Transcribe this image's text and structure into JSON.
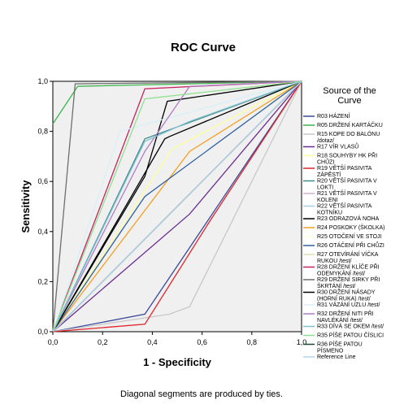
{
  "chart_data": {
    "type": "line",
    "title": "ROC Curve",
    "xlabel": "1 - Specificity",
    "ylabel": "Sensitivity",
    "xlim": [
      0,
      1
    ],
    "ylim": [
      0,
      1
    ],
    "x_ticks": [
      "0,0",
      "0,2",
      "0,4",
      "0,6",
      "0,8",
      "1,0"
    ],
    "y_ticks": [
      "0,0",
      "0,2",
      "0,4",
      "0,6",
      "0,8",
      "1,0"
    ],
    "grid": false,
    "plot_background": "#f0f0f0",
    "legend": {
      "title_lines": [
        "Source of the",
        "Curve"
      ],
      "placement": "right"
    },
    "footnote": "Diagonal segments are produced by ties.",
    "series": [
      {
        "name": [
          "R03 HÁZENÍ"
        ],
        "color": "#3a4a9c",
        "points": [
          [
            0,
            0
          ],
          [
            0.37,
            0.07
          ],
          [
            1,
            1
          ]
        ]
      },
      {
        "name": [
          "R05 DRŽENÍ KARTÁČKU"
        ],
        "color": "#3cb44b",
        "points": [
          [
            0,
            0.83
          ],
          [
            0.1,
            0.98
          ],
          [
            1,
            1
          ]
        ]
      },
      {
        "name": [
          "R15 KOPE DO BALÓNU",
          "/dotaz/"
        ],
        "color": "#c8c8c8",
        "points": [
          [
            0,
            0
          ],
          [
            0.47,
            0.07
          ],
          [
            0.55,
            0.1
          ],
          [
            1,
            1
          ]
        ]
      },
      {
        "name": [
          "R17 VÍR VLASŮ"
        ],
        "color": "#6a2c91",
        "points": [
          [
            0,
            0
          ],
          [
            0.55,
            0.47
          ],
          [
            1,
            1
          ]
        ]
      },
      {
        "name": [
          "R18 SOUHYBY HK PŘI",
          "CHŮZI"
        ],
        "color": "#ffff99",
        "points": [
          [
            0,
            0
          ],
          [
            0.48,
            0.73
          ],
          [
            1,
            1
          ]
        ]
      },
      {
        "name": [
          "R19 VĚTŠÍ PASIVITA",
          "ZÁPĚSTÍ"
        ],
        "color": "#e0242c",
        "points": [
          [
            0,
            0
          ],
          [
            0.37,
            0.03
          ],
          [
            0.63,
            0.44
          ],
          [
            1,
            1
          ]
        ]
      },
      {
        "name": [
          "R20 VĚTŠÍ PASIVITA V",
          "LOKTI"
        ],
        "color": "#3f8c8c",
        "points": [
          [
            0,
            0
          ],
          [
            0.37,
            0.77
          ],
          [
            1,
            1
          ]
        ]
      },
      {
        "name": [
          "R21 VĚTŠÍ PASIVITA V",
          "KOLENI"
        ],
        "color": "#d2b4d2",
        "points": [
          [
            0,
            0
          ],
          [
            1,
            1
          ]
        ]
      },
      {
        "name": [
          "R22 VĚTŠÍ PASIVITA",
          "KOTNÍKU"
        ],
        "color": "#a6d0e8",
        "points": [
          [
            0,
            0
          ],
          [
            0.55,
            0.55
          ],
          [
            1,
            1
          ]
        ]
      },
      {
        "name": [
          "R23 ODRAZOVÁ NOHA"
        ],
        "color": "#000000",
        "points": [
          [
            0,
            0
          ],
          [
            0.45,
            0.77
          ],
          [
            0.47,
            0.78
          ],
          [
            1,
            1
          ]
        ]
      },
      {
        "name": [
          "R24 POSKOKY (ŠKOLKA)"
        ],
        "color": "#f5a020",
        "points": [
          [
            0,
            0
          ],
          [
            0.55,
            0.72
          ],
          [
            1,
            1
          ]
        ]
      },
      {
        "name": [
          "R25 OTOČENÍ VE STOJI"
        ],
        "color": "#ffffe0",
        "points": [
          [
            0,
            0
          ],
          [
            1,
            1
          ]
        ]
      },
      {
        "name": [
          "R26 OTÁČENÍ PŘI CHŮZI"
        ],
        "color": "#3060a0",
        "points": [
          [
            0,
            0
          ],
          [
            0.37,
            0.54
          ],
          [
            1,
            1
          ]
        ]
      },
      {
        "name": [
          "R27 OTEVÍRÁNÍ VÍČKA",
          "RUKOU /test/"
        ],
        "color": "#e0e0b0",
        "points": [
          [
            0,
            0
          ],
          [
            1,
            1
          ]
        ]
      },
      {
        "name": [
          "R28 DRŽENÍ KLÍČE PŘI",
          "ODEMYKÁNÍ /test/"
        ],
        "color": "#c82060",
        "points": [
          [
            0,
            0
          ],
          [
            0.37,
            0.97
          ],
          [
            1,
            1
          ]
        ]
      },
      {
        "name": [
          "R29 DRŽENÍ SIRKY PŘI",
          "ŠKRTÁNÍ /test/"
        ],
        "color": "#6e6e6e",
        "points": [
          [
            0,
            0
          ],
          [
            0.09,
            0.99
          ],
          [
            1,
            1
          ]
        ]
      },
      {
        "name": [
          "R30 DRŽENÍ NÁSADY",
          "(HORNÍ RUKA) /test/"
        ],
        "color": "#000000",
        "points": [
          [
            0,
            0
          ],
          [
            0.37,
            0.62
          ],
          [
            0.46,
            0.92
          ],
          [
            1,
            1
          ]
        ]
      },
      {
        "name": [
          "R31 VÁZÁNÍ UZLU /test/"
        ],
        "color": "#d6f0f8",
        "points": [
          [
            0,
            0
          ],
          [
            0.27,
            0.8
          ],
          [
            1,
            1
          ]
        ]
      },
      {
        "name": [
          "R32 DRŽENÍ NITI PŘI",
          "NAVLÉKÁNÍ /test/"
        ],
        "color": "#b07cc6",
        "points": [
          [
            0,
            0
          ],
          [
            0.37,
            0.72
          ],
          [
            0.55,
            0.98
          ],
          [
            1,
            1
          ]
        ]
      },
      {
        "name": [
          "R33 DÍVÁ SE OKEM /test/"
        ],
        "color": "#80c0d0",
        "points": [
          [
            0,
            0
          ],
          [
            0.37,
            0.76
          ],
          [
            0.55,
            0.84
          ],
          [
            1,
            1
          ]
        ]
      },
      {
        "name": [
          "R35 PÍŠE PATOU ČÍSLICI"
        ],
        "color": "#8ee08e",
        "points": [
          [
            0,
            0
          ],
          [
            0.37,
            0.93
          ],
          [
            1,
            1
          ]
        ]
      },
      {
        "name": [
          "R36 PÍŠE PATOU",
          "PÍSMENO"
        ],
        "color": "#1a4a30",
        "points": [
          [
            0,
            0
          ],
          [
            1,
            1
          ]
        ]
      },
      {
        "name": [
          "Reference Line"
        ],
        "color": "#b4d4ee",
        "points": [
          [
            0,
            0
          ],
          [
            1,
            1
          ]
        ]
      }
    ]
  }
}
